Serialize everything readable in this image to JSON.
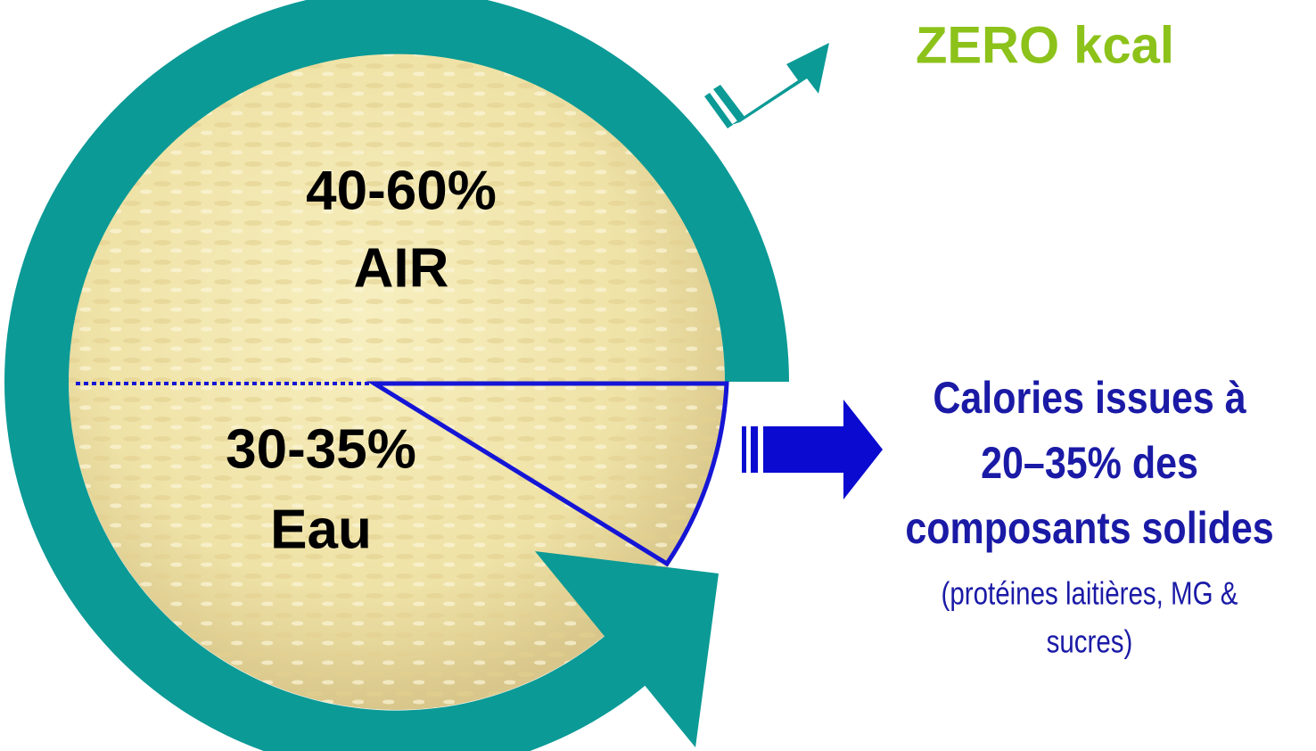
{
  "scoop": {
    "air": {
      "percent": "40-60%",
      "label": "AIR"
    },
    "water": {
      "percent": "30-35%",
      "label": "Eau"
    }
  },
  "air_result": "ZERO kcal",
  "solids_result": {
    "lines": [
      "Calories issues à",
      "20–35% des",
      "composants solides"
    ],
    "note_lines": [
      "(protéines laitières, MG &",
      "sucres)"
    ]
  }
}
